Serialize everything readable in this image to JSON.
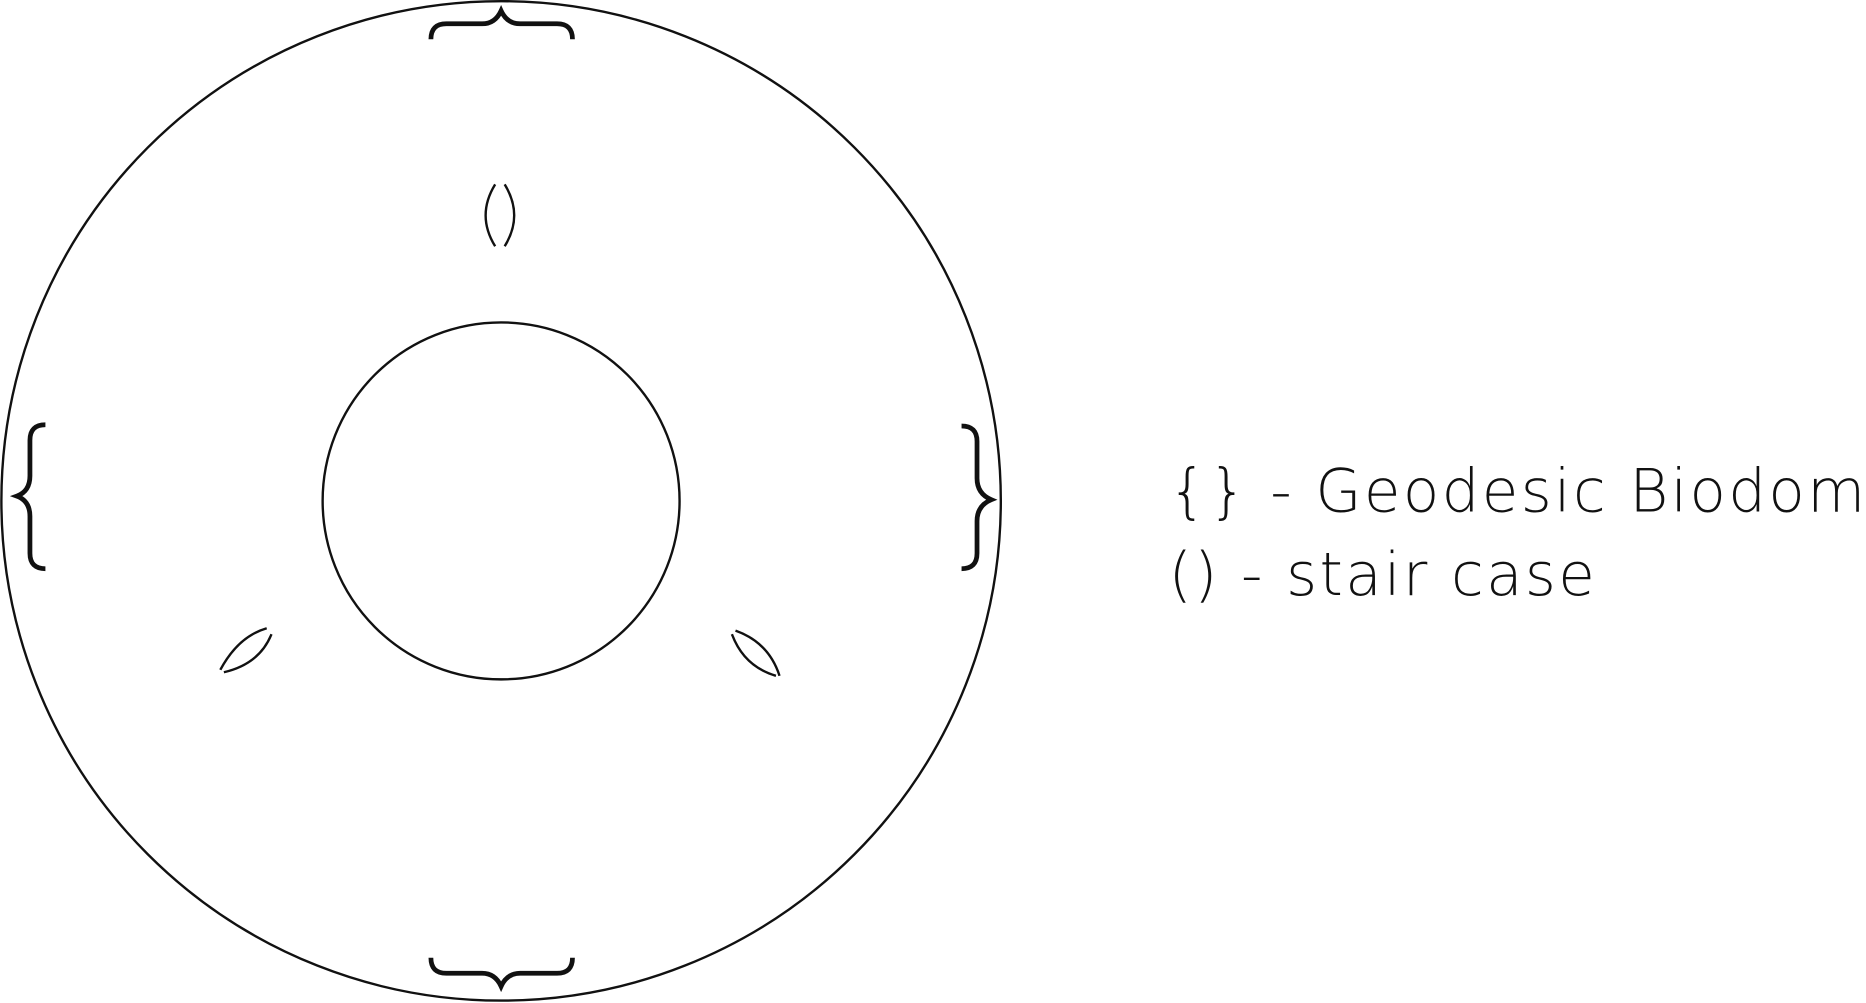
{
  "legend": {
    "items": [
      "{} - Geodesic Biodome",
      "() - stair case"
    ]
  }
}
